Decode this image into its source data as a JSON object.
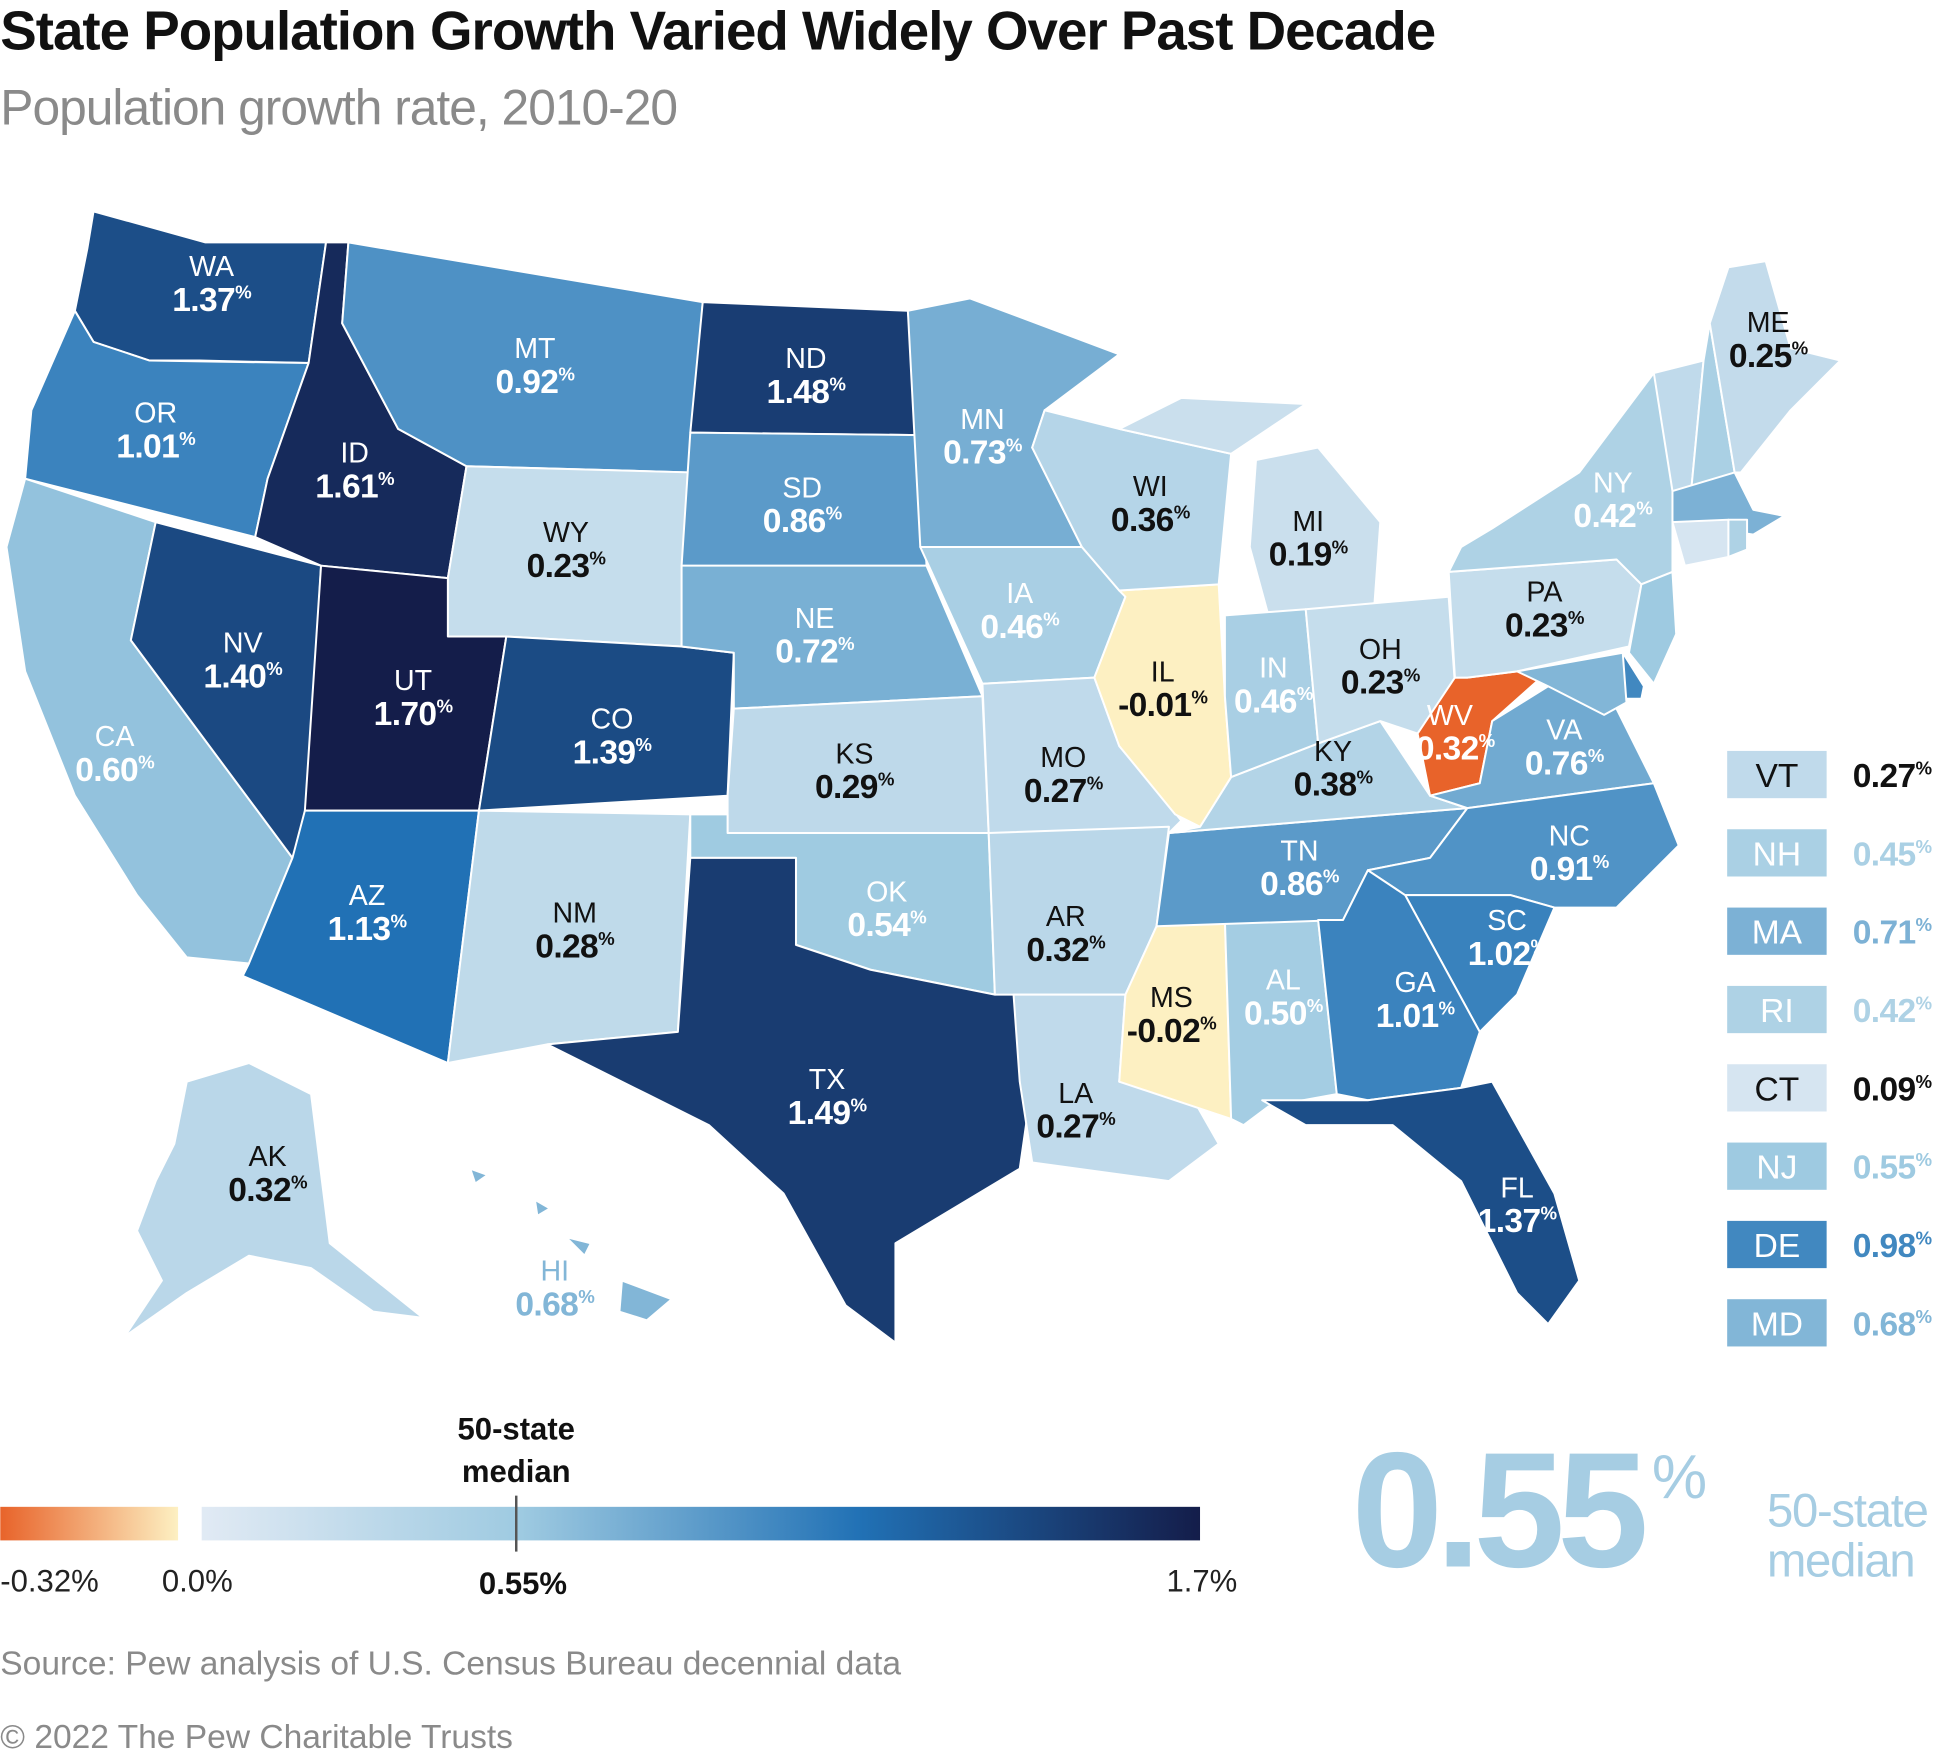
{
  "title": "State Population Growth Varied Widely Over Past Decade",
  "subtitle": "Population growth rate, 2010-20",
  "percent_sign": "%",
  "colors": {
    "negative_max": "#e8632a",
    "negative_zero": "#fdf0c2",
    "low": "#e1eaf4",
    "median": "#9ecae1",
    "mid_high": "#2171b5",
    "high": "#141d4a",
    "median_text": "#a6cde3"
  },
  "states": [
    {
      "abbr": "WA",
      "value": 1.37
    },
    {
      "abbr": "OR",
      "value": 1.01
    },
    {
      "abbr": "CA",
      "value": 0.6
    },
    {
      "abbr": "NV",
      "value": 1.4
    },
    {
      "abbr": "ID",
      "value": 1.61
    },
    {
      "abbr": "MT",
      "value": 0.92
    },
    {
      "abbr": "WY",
      "value": 0.23
    },
    {
      "abbr": "UT",
      "value": 1.7
    },
    {
      "abbr": "CO",
      "value": 1.39
    },
    {
      "abbr": "AZ",
      "value": 1.13
    },
    {
      "abbr": "NM",
      "value": 0.28
    },
    {
      "abbr": "ND",
      "value": 1.48
    },
    {
      "abbr": "SD",
      "value": 0.86
    },
    {
      "abbr": "NE",
      "value": 0.72
    },
    {
      "abbr": "KS",
      "value": 0.29
    },
    {
      "abbr": "OK",
      "value": 0.54
    },
    {
      "abbr": "TX",
      "value": 1.49
    },
    {
      "abbr": "MN",
      "value": 0.73
    },
    {
      "abbr": "IA",
      "value": 0.46
    },
    {
      "abbr": "MO",
      "value": 0.27
    },
    {
      "abbr": "AR",
      "value": 0.32
    },
    {
      "abbr": "LA",
      "value": 0.27
    },
    {
      "abbr": "WI",
      "value": 0.36
    },
    {
      "abbr": "IL",
      "value": -0.01
    },
    {
      "abbr": "MI",
      "value": 0.19
    },
    {
      "abbr": "IN",
      "value": 0.46
    },
    {
      "abbr": "OH",
      "value": 0.23
    },
    {
      "abbr": "KY",
      "value": 0.38
    },
    {
      "abbr": "TN",
      "value": 0.86
    },
    {
      "abbr": "MS",
      "value": -0.02
    },
    {
      "abbr": "AL",
      "value": 0.5
    },
    {
      "abbr": "GA",
      "value": 1.01
    },
    {
      "abbr": "FL",
      "value": 1.37
    },
    {
      "abbr": "SC",
      "value": 1.02
    },
    {
      "abbr": "NC",
      "value": 0.91
    },
    {
      "abbr": "VA",
      "value": 0.76
    },
    {
      "abbr": "WV",
      "value": -0.32
    },
    {
      "abbr": "PA",
      "value": 0.23
    },
    {
      "abbr": "NY",
      "value": 0.42
    },
    {
      "abbr": "ME",
      "value": 0.25
    },
    {
      "abbr": "AK",
      "value": 0.32
    },
    {
      "abbr": "HI",
      "value": 0.68
    }
  ],
  "small_states": [
    {
      "abbr": "VT",
      "value": 0.27
    },
    {
      "abbr": "NH",
      "value": 0.45
    },
    {
      "abbr": "MA",
      "value": 0.71
    },
    {
      "abbr": "RI",
      "value": 0.42
    },
    {
      "abbr": "CT",
      "value": 0.09
    },
    {
      "abbr": "NJ",
      "value": 0.55
    },
    {
      "abbr": "DE",
      "value": 0.98
    },
    {
      "abbr": "MD",
      "value": 0.68
    }
  ],
  "legend": {
    "median_label_1": "50-state",
    "median_label_2": "median",
    "ticks": [
      "-0.32%",
      "0.0%",
      "0.55%",
      "1.7%"
    ],
    "range": [
      -0.32,
      1.7
    ],
    "median": 0.55
  },
  "median_callout": {
    "value": "0.55",
    "label_1": "50-state",
    "label_2": "median"
  },
  "source": "Source: Pew analysis of U.S. Census Bureau decennial data",
  "copyright": "© 2022 The Pew Charitable Trusts"
}
